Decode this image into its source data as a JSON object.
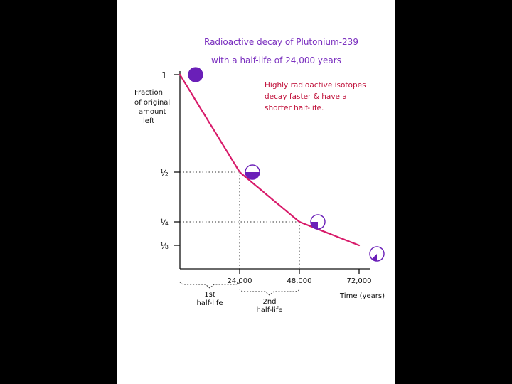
{
  "chart_data": {
    "type": "line",
    "title": "Radioactive decay of Plutonium-239",
    "subtitle": "with a half-life of 24,000 years",
    "annotation": [
      "Highly radioactive isotopes",
      "decay faster & have a",
      "shorter half-life."
    ],
    "ylabel": [
      "Fraction",
      "of original",
      "amount",
      "left"
    ],
    "xlabel": "Time (years)",
    "x_ticks": [
      {
        "value": 24000,
        "label": "24,000"
      },
      {
        "value": 48000,
        "label": "48,000"
      },
      {
        "value": 72000,
        "label": "72,000"
      }
    ],
    "y_ticks": [
      {
        "value": 1,
        "label": "1"
      },
      {
        "value": 0.5,
        "label": "½"
      },
      {
        "value": 0.25,
        "label": "¼"
      },
      {
        "value": 0.125,
        "label": "⅛"
      }
    ],
    "half_life_labels": [
      {
        "start": 0,
        "end": 24000,
        "lines": [
          "1st",
          "half-life"
        ]
      },
      {
        "start": 24000,
        "end": 48000,
        "lines": [
          "2nd",
          "half-life"
        ]
      }
    ],
    "curve": {
      "initial": 1,
      "half_life": 24000,
      "x_end": 72000
    },
    "points": [
      {
        "x": 0,
        "y": 1
      },
      {
        "x": 24000,
        "y": 0.5
      },
      {
        "x": 48000,
        "y": 0.25
      },
      {
        "x": 72000,
        "y": 0.125
      }
    ],
    "xlim": [
      0,
      72000
    ],
    "colors": {
      "curve": "#d81b6a",
      "title": "#7a2fbf",
      "annotation": "#c0103a",
      "marker": "#6a1fb8",
      "ink": "#111111"
    }
  }
}
